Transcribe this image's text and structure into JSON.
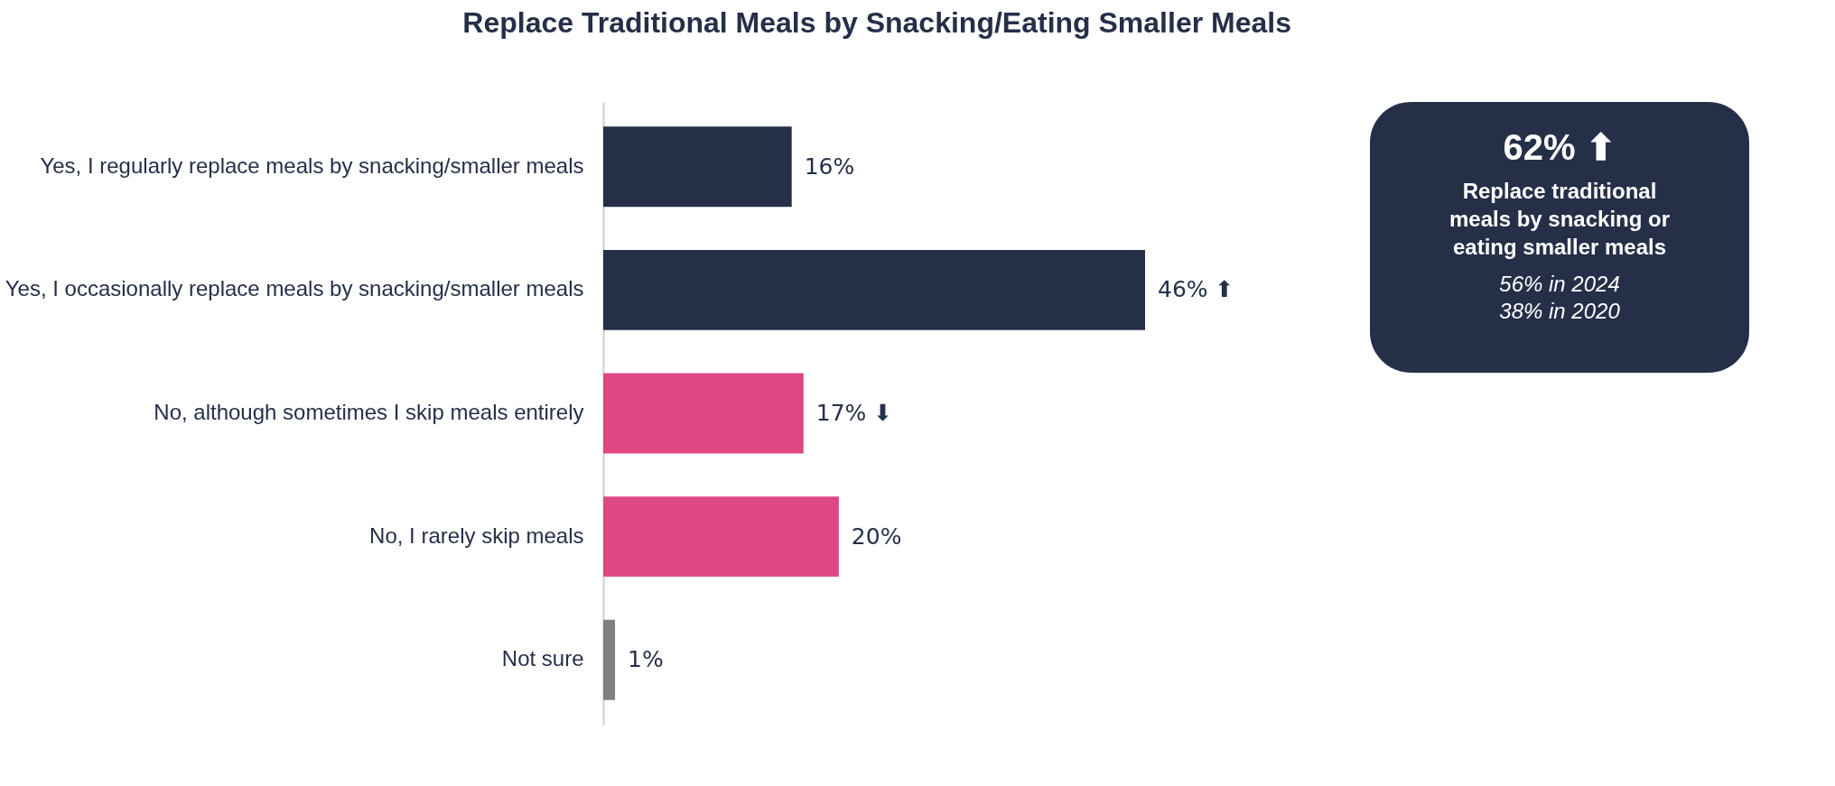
{
  "chart_data": {
    "type": "bar",
    "orientation": "horizontal",
    "title": "Replace Traditional Meals by Snacking/Eating Smaller Meals",
    "categories": [
      "Yes, I regularly replace meals by snacking/smaller meals",
      "Yes, I occasionally replace meals by snacking/smaller meals",
      "No, although sometimes I skip meals entirely",
      "No, I rarely skip meals",
      "Not sure"
    ],
    "values": [
      16,
      46,
      17,
      20,
      1
    ],
    "colors": [
      "#252f48",
      "#252f48",
      "#e04883",
      "#e04883",
      "#808080"
    ],
    "value_labels": [
      "16%",
      "46% ⬆",
      "17% ⬇",
      "20%",
      "1%"
    ],
    "tick_labels": "y",
    "annotations": [
      "62% ⬆",
      "Replace traditional meals by snacking or eating smaller meals",
      "56% in 2024",
      "38% in 2020"
    ]
  }
}
